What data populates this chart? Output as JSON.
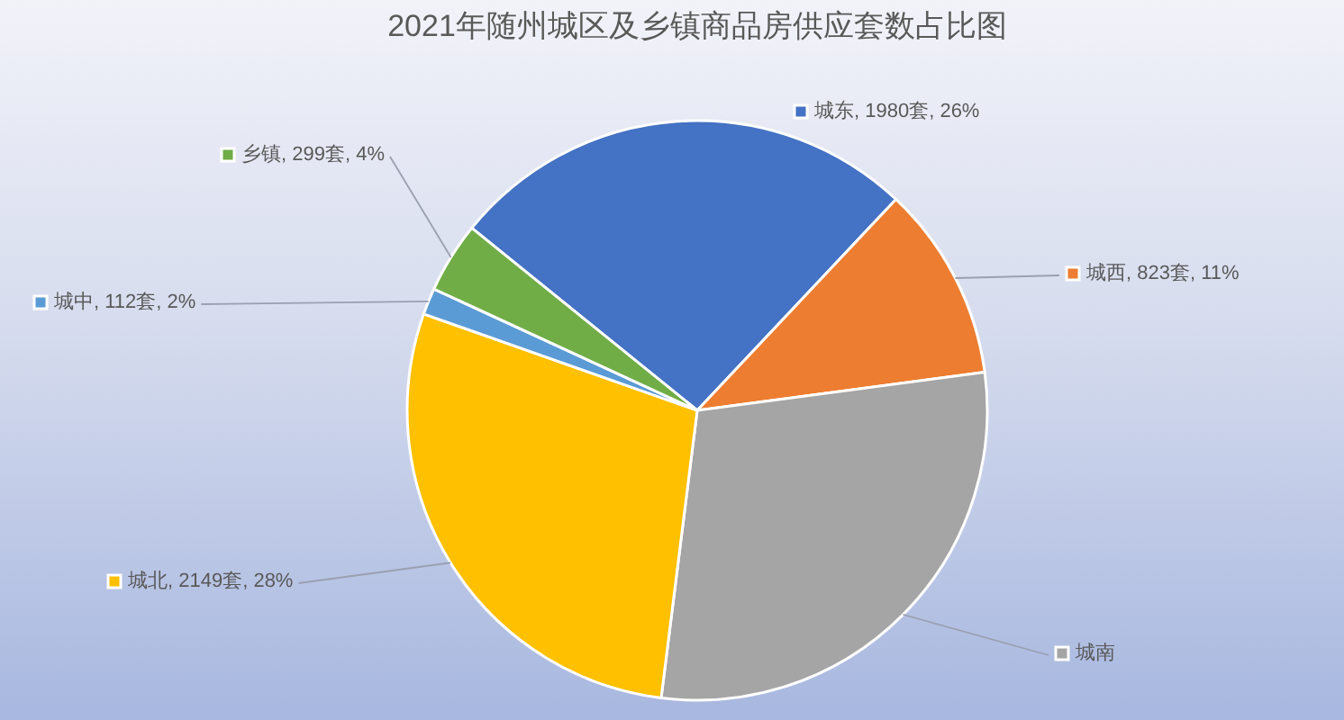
{
  "chart_data": {
    "type": "pie",
    "title": "2021年随州城区及乡镇商品房供应套数占比图",
    "categories": [
      "城东",
      "城西",
      "城南",
      "城北",
      "城中",
      "乡镇"
    ],
    "values": [
      1980,
      823,
      2200,
      2149,
      112,
      299
    ],
    "colors": [
      "#4472c4",
      "#ed7d31",
      "#a5a5a5",
      "#ffc000",
      "#5b9bd5",
      "#70ad47"
    ],
    "value_labels": [
      "1980套, 26%",
      "823套, 11%",
      null,
      "2149套, 28%",
      "112套, 2%",
      "299套, 4%"
    ],
    "legend": true
  }
}
